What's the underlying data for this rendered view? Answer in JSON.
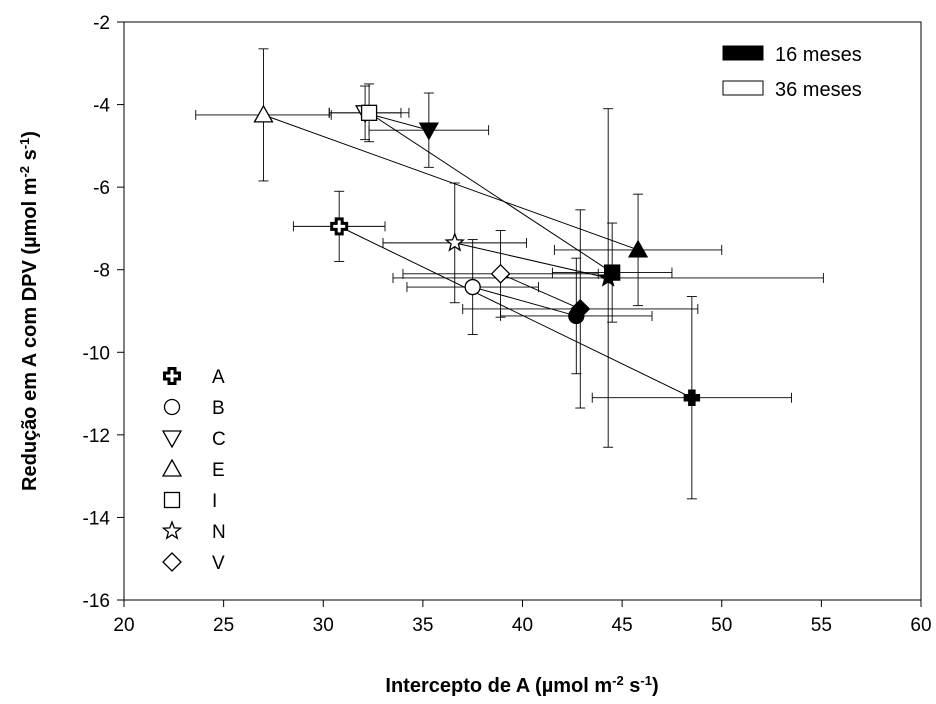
{
  "chart_data": {
    "type": "scatter",
    "xlabel": "Intercepto de A (µmol m-2 s-1)",
    "xlabel_parts": {
      "pre": "Intercepto de A (µmol m",
      "sup1": "-2",
      "mid": " s",
      "sup2": "-1",
      "post": ")"
    },
    "ylabel": "Redução em A com DPV (µmol m-2 s-1)",
    "ylabel_parts": {
      "pre": "Redução em A com DPV (µmol m",
      "sup1": "-2",
      "mid": " s",
      "sup2": "-1",
      "post": ")"
    },
    "xlim": [
      20,
      60
    ],
    "ylim": [
      -16,
      -2
    ],
    "xticks": [
      20,
      25,
      30,
      35,
      40,
      45,
      50,
      55,
      60
    ],
    "yticks": [
      -16,
      -14,
      -12,
      -10,
      -8,
      -6,
      -4,
      -2
    ],
    "age_legend": {
      "position": "top-right",
      "entries": [
        {
          "label": "16 meses",
          "fill": "#000000"
        },
        {
          "label": "36 meses",
          "fill": "#ffffff"
        }
      ]
    },
    "symbol_legend": {
      "position": "bottom-left",
      "entries": [
        {
          "label": "A",
          "marker": "cross"
        },
        {
          "label": "B",
          "marker": "circle"
        },
        {
          "label": "C",
          "marker": "triangle-down"
        },
        {
          "label": "E",
          "marker": "triangle-up"
        },
        {
          "label": "I",
          "marker": "square"
        },
        {
          "label": "N",
          "marker": "star"
        },
        {
          "label": "V",
          "marker": "diamond"
        }
      ]
    },
    "series": [
      {
        "name": "A",
        "marker": "cross",
        "m36": {
          "x": 30.8,
          "y": -6.95,
          "xerr": 2.3,
          "yerr": 0.85
        },
        "m16": {
          "x": 48.5,
          "y": -11.1,
          "xerr": 5.0,
          "yerr": 2.45
        }
      },
      {
        "name": "B",
        "marker": "circle",
        "m36": {
          "x": 37.5,
          "y": -8.42,
          "xerr": 3.3,
          "yerr": 1.15
        },
        "m16": {
          "x": 42.7,
          "y": -9.12,
          "xerr": 3.8,
          "yerr": 1.4
        }
      },
      {
        "name": "C",
        "marker": "triangle-down",
        "m36": {
          "x": 32.1,
          "y": -4.2,
          "xerr": 1.8,
          "yerr": 0.65
        },
        "m16": {
          "x": 35.3,
          "y": -4.62,
          "xerr": 3.0,
          "yerr": 0.9
        }
      },
      {
        "name": "E",
        "marker": "triangle-up",
        "m36": {
          "x": 27.0,
          "y": -4.25,
          "xerr": 3.4,
          "yerr": 1.6
        },
        "m16": {
          "x": 45.8,
          "y": -7.52,
          "xerr": 4.2,
          "yerr": 1.35
        }
      },
      {
        "name": "I",
        "marker": "square",
        "m36": {
          "x": 32.3,
          "y": -4.2,
          "xerr": 2.0,
          "yerr": 0.7
        },
        "m16": {
          "x": 44.5,
          "y": -8.07,
          "xerr": 3.0,
          "yerr": 1.2
        }
      },
      {
        "name": "N",
        "marker": "star",
        "m36": {
          "x": 36.6,
          "y": -7.35,
          "xerr": 3.6,
          "yerr": 1.45
        },
        "m16": {
          "x": 44.3,
          "y": -8.2,
          "xerr": 10.8,
          "yerr": 4.1
        }
      },
      {
        "name": "V",
        "marker": "diamond",
        "m36": {
          "x": 38.9,
          "y": -8.1,
          "xerr": 4.9,
          "yerr": 1.05
        },
        "m16": {
          "x": 42.9,
          "y": -8.95,
          "xerr": 5.9,
          "yerr": 2.4
        }
      }
    ]
  }
}
